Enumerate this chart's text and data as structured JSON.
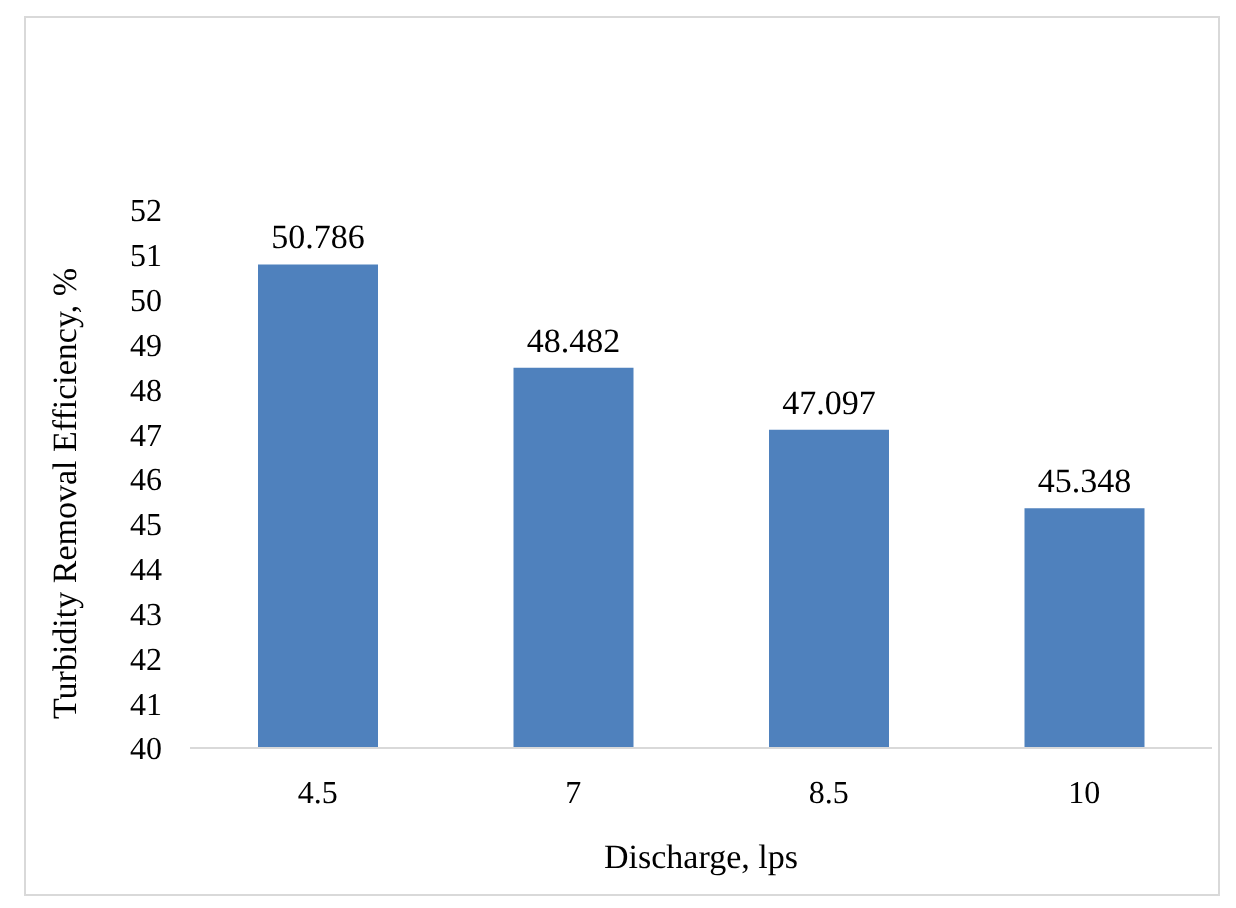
{
  "chart_data": {
    "type": "bar",
    "xlabel": "Discharge, lps",
    "ylabel": "Turbidity Removal Efficiency, %",
    "categories": [
      "4.5",
      "7",
      "8.5",
      "10"
    ],
    "values": [
      50.786,
      48.482,
      47.097,
      45.348
    ],
    "color": "#4f81bd",
    "ylim": [
      40,
      52
    ],
    "yticks": [
      40,
      41,
      42,
      43,
      44,
      45,
      46,
      47,
      48,
      49,
      50,
      51,
      52
    ],
    "data_labels": true,
    "grid": false,
    "legend": false
  }
}
